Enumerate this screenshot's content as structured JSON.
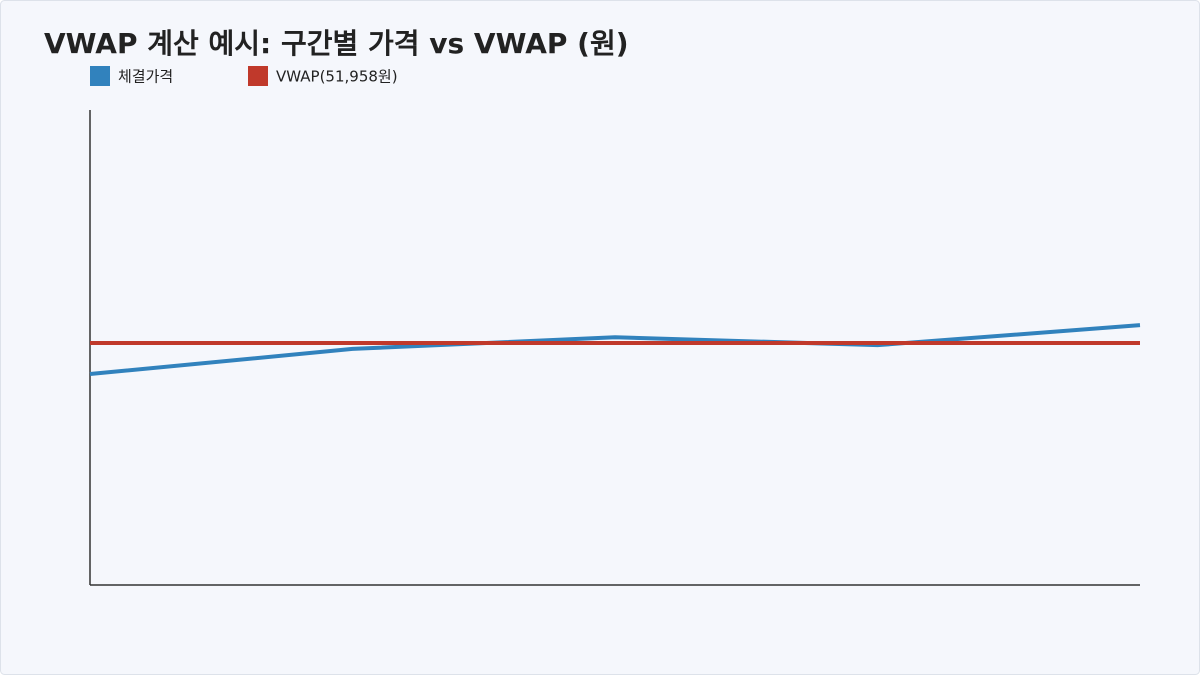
{
  "chart_data": {
    "type": "line",
    "title": "VWAP 계산 예시: 구간별 가격 vs VWAP (원)",
    "categories": [
      null,
      null,
      null,
      null,
      null
    ],
    "series": [
      {
        "name": "체결가격",
        "color": "#3182bd",
        "values": [
          45300,
          50700,
          53200,
          51500,
          55800
        ]
      },
      {
        "name": "VWAP(51,958원)",
        "color": "#c0392b",
        "values": [
          51958,
          51958,
          51958,
          51958,
          51958
        ]
      }
    ],
    "ylim": [
      0,
      102000
    ]
  }
}
